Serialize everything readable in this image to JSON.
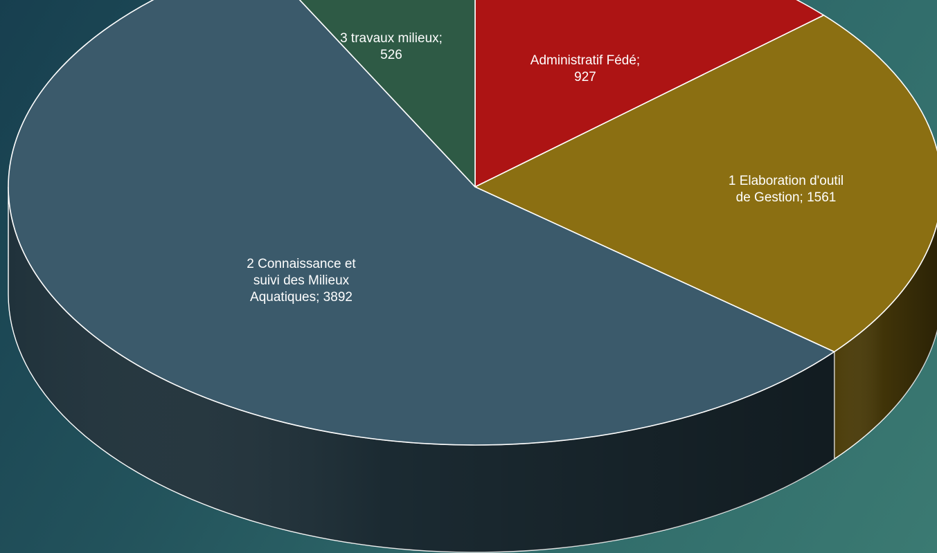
{
  "chart_data": {
    "type": "pie",
    "style": "3d",
    "title": "",
    "categories": [
      "Administratif Fédé",
      "1 Elaboration d'outil de Gestion",
      "2 Connaissance et suivi des Milieux Aquatiques",
      "3 travaux milieux"
    ],
    "values": [
      927,
      1561,
      3892,
      526
    ],
    "colors": [
      "#ad1414",
      "#8b6f12",
      "#3b5a6b",
      "#2e5a45"
    ],
    "legend": "none",
    "data_labels": [
      "Administratif Fédé;\n927",
      "1 Elaboration d'outil\nde Gestion; 1561",
      "2 Connaissance et\nsuivi des Milieux\nAquatiques; 3892",
      "3 travaux milieux;\n526"
    ]
  }
}
